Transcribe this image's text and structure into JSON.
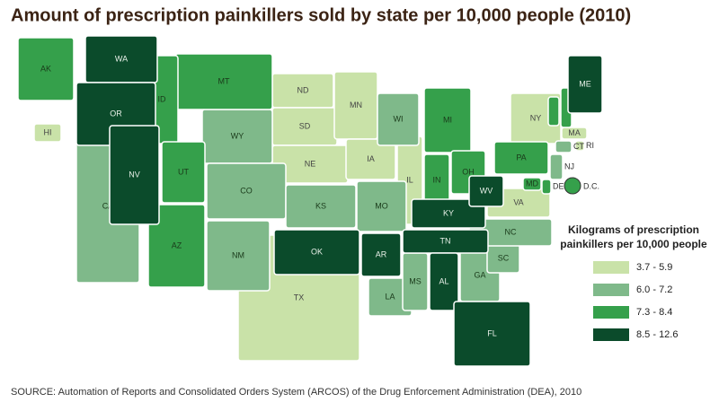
{
  "title": "Amount of prescription painkillers sold by state per 10,000 people (2010)",
  "source": "SOURCE: Automation of Reports and Consolidated Orders System (ARCOS) of the Drug Enforcement Administration (DEA), 2010",
  "legend": {
    "title": [
      "Kilograms of prescription",
      "painkillers per 10,000 people"
    ],
    "items": [
      {
        "label": "3.7 - 5.9",
        "color": "#c9e2a8",
        "states": [
          "ND",
          "SD",
          "NE",
          "MN",
          "IA",
          "IL",
          "TX",
          "VA",
          "NY",
          "MA",
          "RI",
          "HI"
        ]
      },
      {
        "label": "6.0 - 7.2",
        "color": "#7fb98a",
        "states": [
          "CA",
          "WY",
          "CO",
          "NM",
          "KS",
          "MO",
          "LA",
          "MS",
          "WI",
          "GA",
          "SC",
          "NC",
          "CT",
          "NJ"
        ]
      },
      {
        "label": "7.3 - 8.4",
        "color": "#35a04b",
        "states": [
          "AK",
          "MT",
          "ID",
          "UT",
          "AZ",
          "MI",
          "IN",
          "OH",
          "PA",
          "VT",
          "NH",
          "DE",
          "MD",
          "D.C."
        ]
      },
      {
        "label": "8.5 - 12.6",
        "color": "#0b4b2b",
        "states": [
          "WA",
          "OR",
          "NV",
          "OK",
          "AR",
          "TN",
          "KY",
          "WV",
          "AL",
          "FL",
          "ME"
        ]
      }
    ]
  }
}
